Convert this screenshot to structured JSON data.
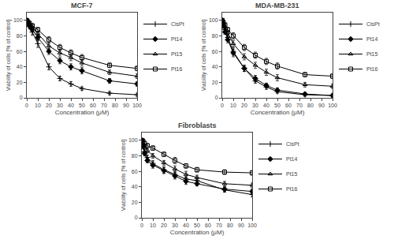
{
  "chart_data": [
    {
      "type": "line",
      "title": "MCF-7",
      "xlabel": "Concentration (μM)",
      "ylabel": "Viability of cells [% of control]",
      "x": [
        0,
        1,
        2.5,
        5,
        10,
        20,
        30,
        40,
        50,
        75,
        100
      ],
      "xlim": [
        0,
        100
      ],
      "ylim": [
        0,
        110
      ],
      "xticks": [
        0,
        10,
        20,
        30,
        40,
        50,
        60,
        70,
        80,
        90,
        100
      ],
      "yticks": [
        0,
        20,
        40,
        60,
        80,
        100
      ],
      "grid": false,
      "legend": "right",
      "series": [
        {
          "name": "CisPt",
          "color": "black",
          "marker": "plus",
          "values": [
            100,
            96,
            92,
            85,
            70,
            40,
            25,
            18,
            12,
            6,
            4
          ],
          "errors": [
            2,
            3,
            3,
            4,
            5,
            4,
            3,
            3,
            2,
            2,
            2
          ]
        },
        {
          "name": "Pt14",
          "color": "black",
          "marker": "diamond",
          "values": [
            100,
            97,
            93,
            88,
            78,
            60,
            48,
            40,
            35,
            22,
            18
          ],
          "errors": [
            2,
            3,
            3,
            3,
            4,
            4,
            4,
            4,
            4,
            3,
            3
          ]
        },
        {
          "name": "Pt15",
          "color": "black",
          "marker": "triangle-open",
          "values": [
            100,
            97,
            94,
            91,
            83,
            67,
            58,
            52,
            45,
            33,
            28
          ],
          "errors": [
            2,
            3,
            3,
            3,
            3,
            4,
            4,
            4,
            4,
            3,
            3
          ]
        },
        {
          "name": "Pt16",
          "color": "black",
          "marker": "square-open",
          "values": [
            100,
            98,
            96,
            93,
            88,
            75,
            65,
            58,
            52,
            42,
            38
          ],
          "errors": [
            2,
            3,
            3,
            3,
            3,
            4,
            4,
            4,
            4,
            3,
            3
          ]
        }
      ]
    },
    {
      "type": "line",
      "title": "MDA-MB-231",
      "xlabel": "Concentration (μM)",
      "ylabel": "Viability of cells [% of control]",
      "x": [
        0,
        1,
        2.5,
        5,
        10,
        20,
        30,
        40,
        50,
        75,
        100
      ],
      "xlim": [
        0,
        100
      ],
      "ylim": [
        0,
        110
      ],
      "xticks": [
        0,
        10,
        20,
        30,
        40,
        50,
        60,
        70,
        80,
        90,
        100
      ],
      "yticks": [
        0,
        20,
        40,
        60,
        80,
        100
      ],
      "grid": false,
      "legend": "right",
      "series": [
        {
          "name": "CisPt",
          "color": "black",
          "marker": "plus",
          "values": [
            100,
            95,
            88,
            78,
            60,
            38,
            22,
            14,
            8,
            4,
            3
          ],
          "errors": [
            2,
            3,
            4,
            4,
            5,
            4,
            3,
            3,
            2,
            2,
            2
          ]
        },
        {
          "name": "Pt14",
          "color": "black",
          "marker": "diamond",
          "values": [
            100,
            93,
            85,
            75,
            58,
            38,
            25,
            16,
            10,
            5,
            3
          ],
          "errors": [
            2,
            3,
            3,
            4,
            5,
            4,
            4,
            3,
            3,
            2,
            2
          ]
        },
        {
          "name": "Pt15",
          "color": "black",
          "marker": "triangle-open",
          "values": [
            100,
            96,
            91,
            84,
            70,
            53,
            42,
            33,
            26,
            17,
            15
          ],
          "errors": [
            2,
            3,
            3,
            3,
            4,
            4,
            4,
            4,
            4,
            3,
            3
          ]
        },
        {
          "name": "Pt16",
          "color": "black",
          "marker": "square-open",
          "values": [
            100,
            97,
            94,
            88,
            80,
            65,
            55,
            47,
            41,
            30,
            28
          ],
          "errors": [
            2,
            3,
            3,
            3,
            4,
            4,
            4,
            4,
            4,
            3,
            3
          ]
        }
      ]
    },
    {
      "type": "line",
      "title": "Fibroblasts",
      "xlabel": "Concentration (μM)",
      "ylabel": "Viability of cells [% of control]",
      "x": [
        0,
        1,
        2.5,
        5,
        10,
        20,
        30,
        40,
        50,
        75,
        100
      ],
      "xlim": [
        0,
        100
      ],
      "ylim": [
        0,
        110
      ],
      "xticks": [
        0,
        10,
        20,
        30,
        40,
        50,
        60,
        70,
        80,
        90,
        100
      ],
      "yticks": [
        0,
        20,
        40,
        60,
        80,
        100
      ],
      "grid": false,
      "legend": "right",
      "series": [
        {
          "name": "CisPt",
          "color": "black",
          "marker": "plus",
          "values": [
            100,
            92,
            85,
            78,
            70,
            62,
            56,
            50,
            48,
            36,
            30
          ],
          "errors": [
            2,
            3,
            3,
            3,
            4,
            4,
            4,
            3,
            3,
            3,
            3
          ]
        },
        {
          "name": "Pt14",
          "color": "black",
          "marker": "diamond",
          "values": [
            100,
            93,
            83,
            74,
            68,
            61,
            54,
            47,
            44,
            37,
            34
          ],
          "errors": [
            2,
            3,
            3,
            3,
            4,
            4,
            4,
            4,
            3,
            3,
            3
          ]
        },
        {
          "name": "Pt15",
          "color": "black",
          "marker": "triangle-open",
          "values": [
            100,
            96,
            92,
            87,
            80,
            71,
            63,
            56,
            52,
            44,
            42
          ],
          "errors": [
            2,
            3,
            3,
            3,
            3,
            3,
            4,
            4,
            3,
            3,
            3
          ]
        },
        {
          "name": "Pt16",
          "color": "black",
          "marker": "square-open",
          "values": [
            100,
            99,
            96,
            93,
            90,
            82,
            74,
            67,
            62,
            59,
            58
          ],
          "errors": [
            2,
            3,
            3,
            3,
            3,
            3,
            4,
            3,
            3,
            3,
            3
          ]
        }
      ]
    }
  ]
}
